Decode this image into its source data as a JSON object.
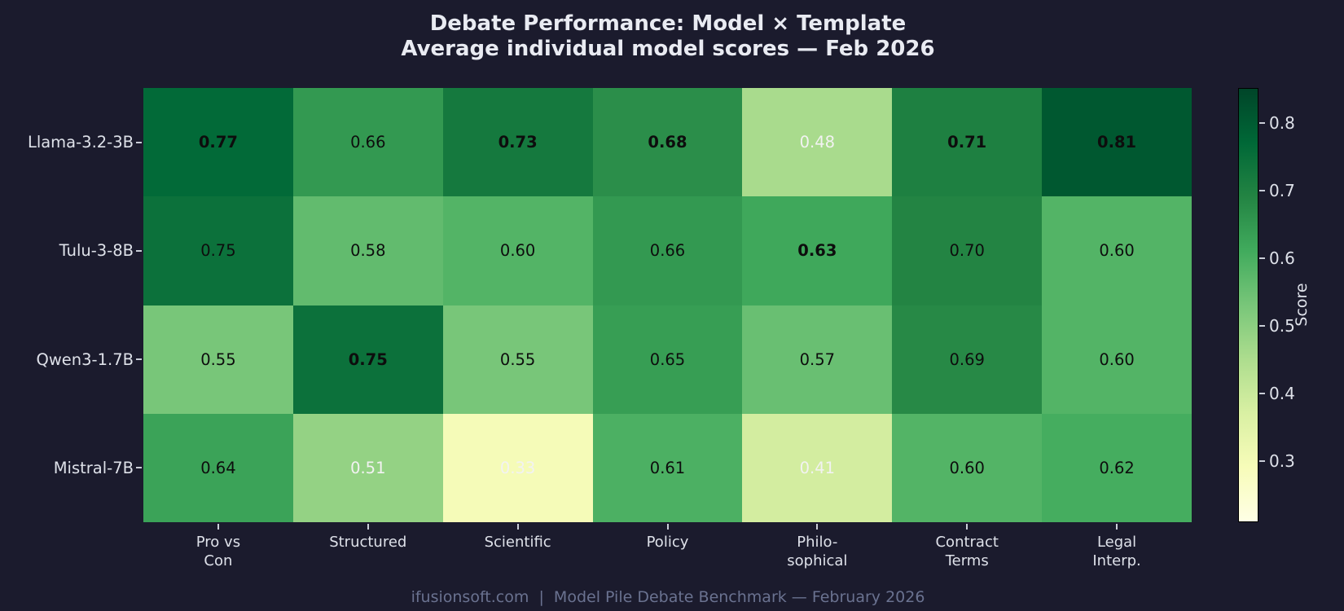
{
  "title": {
    "line1": "Debate Performance: Model × Template",
    "line2": "Average individual model scores — Feb 2026"
  },
  "footer": {
    "text": "ifusionsoft.com  |  Model Pile Debate Benchmark — February 2026"
  },
  "colors": {
    "background": "#1b1b2d",
    "title_text": "#e9ebf2",
    "axis_text": "#dee1e9",
    "tick_mark": "#c9cdd7",
    "footer_text": "#6a7290",
    "cell_text_dark": "#0d0d0d",
    "cell_text_light": "#f2f2f2",
    "colorbar_border": "#000000"
  },
  "chart_data": {
    "type": "heatmap",
    "title": "Debate Performance: Model × Template",
    "subtitle": "Average individual model scores — Feb 2026",
    "rows": [
      "Llama-3.2-3B",
      "Tulu-3-8B",
      "Qwen3-1.7B",
      "Mistral-7B"
    ],
    "columns": [
      "Pro vs\nCon",
      "Structured",
      "Scientific",
      "Policy",
      "Philo-\nsophical",
      "Contract\nTerms",
      "Legal\nInterp."
    ],
    "values": [
      [
        0.77,
        0.66,
        0.73,
        0.68,
        0.48,
        0.71,
        0.81
      ],
      [
        0.75,
        0.58,
        0.6,
        0.66,
        0.63,
        0.7,
        0.6
      ],
      [
        0.55,
        0.75,
        0.55,
        0.65,
        0.57,
        0.69,
        0.6
      ],
      [
        0.64,
        0.51,
        0.33,
        0.61,
        0.41,
        0.6,
        0.62
      ]
    ],
    "bold_mask": [
      [
        true,
        false,
        true,
        true,
        false,
        true,
        true
      ],
      [
        false,
        false,
        false,
        false,
        true,
        false,
        false
      ],
      [
        false,
        true,
        false,
        false,
        false,
        false,
        false
      ],
      [
        false,
        false,
        false,
        false,
        false,
        false,
        false
      ]
    ],
    "white_text_mask": [
      [
        false,
        false,
        false,
        false,
        true,
        false,
        false
      ],
      [
        false,
        false,
        false,
        false,
        false,
        false,
        false
      ],
      [
        false,
        false,
        false,
        false,
        false,
        false,
        false
      ],
      [
        false,
        true,
        true,
        false,
        true,
        false,
        false
      ]
    ],
    "colormap": {
      "name": "YlGn",
      "anchors": [
        "#ffffe5",
        "#f7fcb9",
        "#d9f0a3",
        "#addd8e",
        "#78c679",
        "#41ab5d",
        "#238443",
        "#006837",
        "#004529"
      ],
      "cell_domain": [
        0.25,
        0.85
      ]
    },
    "colorbar": {
      "label": "Score",
      "ticks": [
        0.8,
        0.7,
        0.6,
        0.5,
        0.4,
        0.3
      ],
      "bar_domain": [
        0.21,
        0.852
      ],
      "legend_position": "right"
    },
    "grid": false
  }
}
